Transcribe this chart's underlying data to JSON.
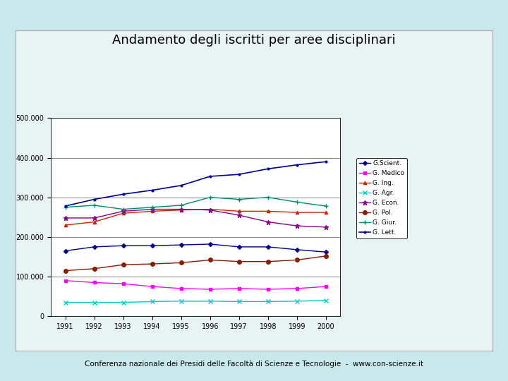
{
  "title": "Andamento degli iscritti per aree disciplinari",
  "subtitle": "Conferenza nazionale dei Presidi delle Facoltà di Scienze e Tecnologie  -  www.con-scienze.it",
  "years": [
    1991,
    1992,
    1993,
    1994,
    1995,
    1996,
    1997,
    1998,
    1999,
    2000
  ],
  "series": [
    {
      "label": "G.Scient.",
      "color": "#00008B",
      "marker": "D",
      "markersize": 3,
      "linewidth": 1.0,
      "values": [
        165000,
        175000,
        178000,
        178000,
        180000,
        182000,
        175000,
        175000,
        168000,
        162000
      ]
    },
    {
      "label": "G. Medico",
      "color": "#FF00FF",
      "marker": "s",
      "markersize": 3,
      "linewidth": 1.0,
      "values": [
        90000,
        85000,
        82000,
        75000,
        70000,
        68000,
        70000,
        68000,
        70000,
        75000
      ]
    },
    {
      "label": "G. Ing.",
      "color": "#CC2200",
      "marker": "^",
      "markersize": 3,
      "linewidth": 1.0,
      "values": [
        230000,
        238000,
        260000,
        265000,
        268000,
        270000,
        265000,
        265000,
        262000,
        262000
      ]
    },
    {
      "label": "G. Agr.",
      "color": "#00CCCC",
      "marker": "x",
      "markersize": 5,
      "linewidth": 1.0,
      "values": [
        35000,
        35000,
        35000,
        37000,
        38000,
        38000,
        37000,
        37000,
        38000,
        40000
      ]
    },
    {
      "label": "G. Econ.",
      "color": "#8B008B",
      "marker": "*",
      "markersize": 5,
      "linewidth": 1.0,
      "values": [
        248000,
        248000,
        265000,
        270000,
        270000,
        268000,
        255000,
        238000,
        228000,
        225000
      ]
    },
    {
      "label": "G. Pol.",
      "color": "#8B1A00",
      "marker": "o",
      "markersize": 4,
      "linewidth": 1.0,
      "values": [
        115000,
        120000,
        130000,
        132000,
        135000,
        142000,
        138000,
        138000,
        142000,
        152000
      ]
    },
    {
      "label": "G. Giur.",
      "color": "#008B6B",
      "marker": "+",
      "markersize": 5,
      "linewidth": 1.0,
      "values": [
        275000,
        280000,
        270000,
        275000,
        280000,
        300000,
        295000,
        300000,
        288000,
        278000
      ]
    },
    {
      "label": "G. Lett.",
      "color": "#00009F",
      "marker": ".",
      "markersize": 4,
      "linewidth": 1.2,
      "values": [
        278000,
        295000,
        308000,
        318000,
        330000,
        353000,
        358000,
        372000,
        382000,
        390000
      ]
    }
  ],
  "background_color": "#C8E8EC",
  "outer_box_color": "#E8F4F4",
  "plot_bg_color": "#FFFFFF",
  "ylim": [
    0,
    500000
  ],
  "yticks": [
    0,
    100000,
    200000,
    300000,
    400000,
    500000
  ],
  "title_fontsize": 13,
  "subtitle_fontsize": 7.5
}
